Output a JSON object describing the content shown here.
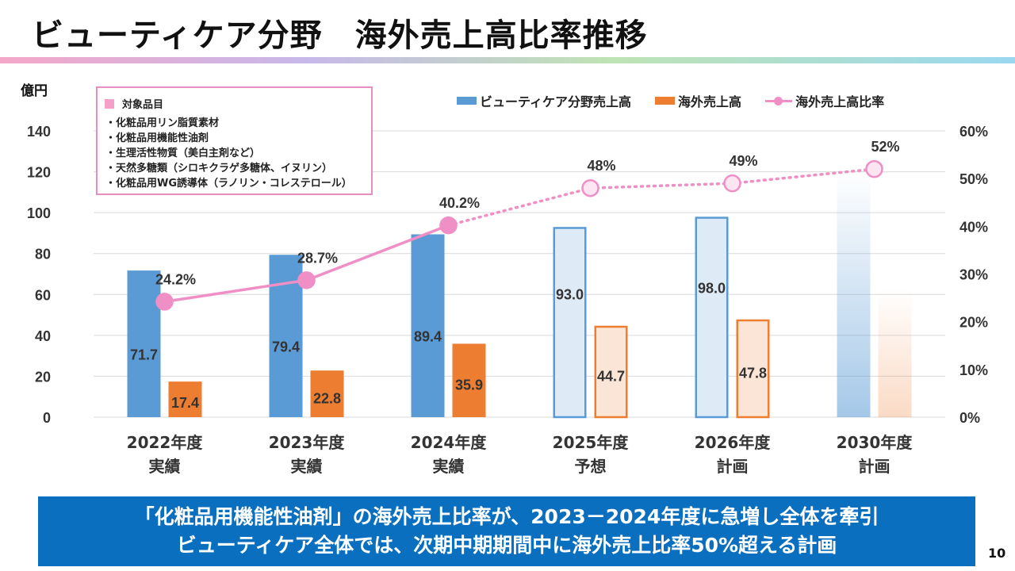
{
  "title": "ビューティケア分野　海外売上高比率推移",
  "unit_label": "億円",
  "target_box": {
    "header": "対象品目",
    "items": [
      "・化粧品用リン脂質素材",
      "・化粧品用機能性油剤",
      "・生理活性物質（美白主剤など）",
      "・天然多糖類（シロキクラゲ多糖体、イヌリン）",
      "・化粧品用WG誘導体（ラノリン・コレステロール）"
    ]
  },
  "colors": {
    "beauty_sales": "#5b9bd5",
    "overseas_sales": "#ed7d31",
    "ratio": "#f08fc5",
    "banner": "#0b6fc0"
  },
  "chart_data": {
    "type": "bar",
    "categories": [
      [
        "2022年度",
        "実績"
      ],
      [
        "2023年度",
        "実績"
      ],
      [
        "2024年度",
        "実績"
      ],
      [
        "2025年度",
        "予想"
      ],
      [
        "2026年度",
        "計画"
      ],
      [
        "2030年度",
        "計画"
      ]
    ],
    "series": [
      {
        "name": "ビューティケア分野売上高",
        "type": "bar",
        "values": [
          71.7,
          79.4,
          89.4,
          93.0,
          98.0,
          120
        ],
        "value_labels": [
          "71.7",
          "79.4",
          "89.4",
          "93.0",
          "98.0",
          ""
        ],
        "style": [
          "solid",
          "solid",
          "solid",
          "outline",
          "outline",
          "gradient"
        ]
      },
      {
        "name": "海外売上高",
        "type": "bar",
        "values": [
          17.4,
          22.8,
          35.9,
          44.7,
          47.8,
          63
        ],
        "value_labels": [
          "17.4",
          "22.8",
          "35.9",
          "44.7",
          "47.8",
          ""
        ],
        "style": [
          "solid",
          "solid",
          "solid",
          "outline",
          "outline",
          "gradient"
        ]
      },
      {
        "name": "海外売上高比率",
        "type": "line",
        "axis": "right",
        "values": [
          24.2,
          28.7,
          40.2,
          48,
          49,
          52
        ],
        "value_labels": [
          "24.2%",
          "28.7%",
          "40.2%",
          "48%",
          "49%",
          "52%"
        ],
        "line_style": [
          "solid",
          "solid",
          "dotted",
          "dotted",
          "dotted"
        ]
      }
    ],
    "ylabel": "億円",
    "ylim": [
      0,
      140
    ],
    "yticks": [
      "0",
      "20",
      "40",
      "60",
      "80",
      "100",
      "120",
      "140"
    ],
    "y2lim": [
      0,
      60
    ],
    "y2ticks": [
      "0%",
      "10%",
      "20%",
      "30%",
      "40%",
      "50%",
      "60%"
    ],
    "grid": true,
    "legend": "top-right"
  },
  "banner": {
    "line1": "「化粧品用機能性油剤」の海外売上比率が、2023－2024年度に急増し全体を牽引",
    "line2": "ビューティケア全体では、次期中期期間中に海外売上比率50%超える計画"
  },
  "page_number": "10"
}
